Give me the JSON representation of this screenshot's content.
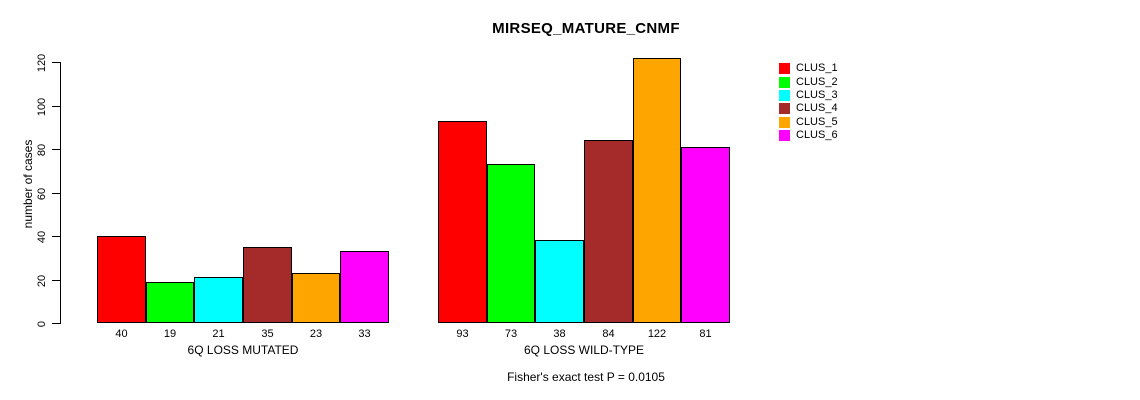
{
  "chart_data": {
    "type": "bar",
    "title": "MIRSEQ_MATURE_CNMF",
    "ylabel": "number of cases",
    "xlabel": "",
    "ylim": [
      0,
      120
    ],
    "yticks": [
      0,
      20,
      40,
      60,
      80,
      100,
      120
    ],
    "grid": false,
    "legend_position": "right-outside",
    "categories": [
      "6Q LOSS MUTATED",
      "6Q LOSS WILD-TYPE"
    ],
    "series": [
      {
        "name": "CLUS_1",
        "color": "#FF0000",
        "values": [
          40,
          93
        ]
      },
      {
        "name": "CLUS_2",
        "color": "#00FF00",
        "values": [
          19,
          73
        ]
      },
      {
        "name": "CLUS_3",
        "color": "#00FFFF",
        "values": [
          21,
          38
        ]
      },
      {
        "name": "CLUS_4",
        "color": "#A52A2A",
        "values": [
          35,
          84
        ]
      },
      {
        "name": "CLUS_5",
        "color": "#FFA500",
        "values": [
          23,
          122
        ]
      },
      {
        "name": "CLUS_6",
        "color": "#FF00FF",
        "values": [
          33,
          81
        ]
      }
    ],
    "bar_value_labels": [
      [
        40,
        19,
        21,
        35,
        23,
        33
      ],
      [
        93,
        73,
        38,
        84,
        122,
        81
      ]
    ],
    "annotation": "Fisher's exact test P = 0.0105"
  }
}
